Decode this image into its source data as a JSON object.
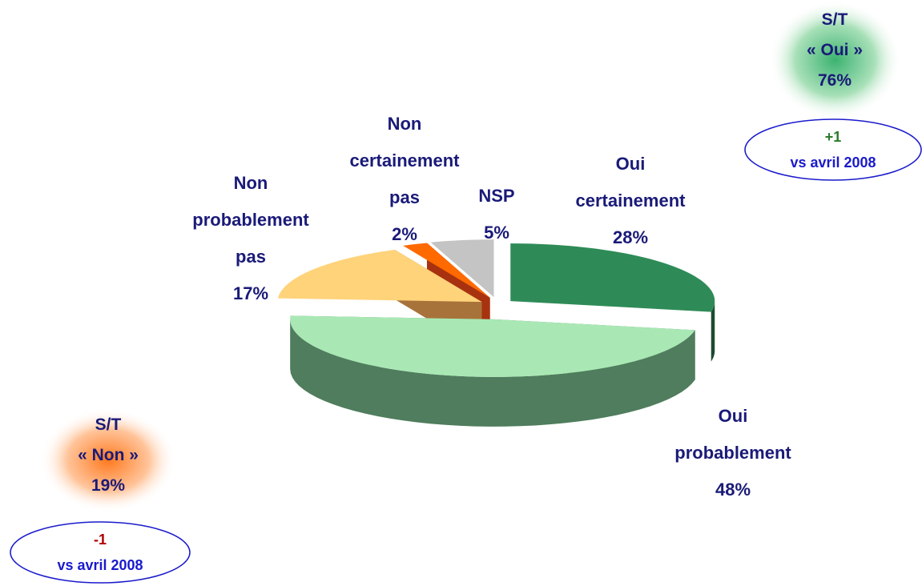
{
  "chart_data": {
    "type": "pie3d",
    "categories": [
      "Oui certainement",
      "Oui probablement",
      "Non probablement pas",
      "Non certainement pas",
      "NSP"
    ],
    "values": [
      28,
      48,
      17,
      2,
      5
    ],
    "value_labels": [
      "28%",
      "48%",
      "17%",
      "2%",
      "5%"
    ],
    "colors": [
      "#2e8b57",
      "#a9e8b4",
      "#ffd37a",
      "#ff6a00",
      "#c4c4c4"
    ],
    "side_colors": [
      "#1c4a30",
      "#4f7d5d",
      "#a8733a",
      "#a83210",
      "#6e6e6e"
    ]
  },
  "summaries": [
    {
      "title": "S/T",
      "subtitle": "« Oui »",
      "value": "76%",
      "change": "+1",
      "period": "vs avril 2008"
    },
    {
      "title": "S/T",
      "subtitle": "«  Non »",
      "value": "19%",
      "change": "-1",
      "period": "vs avril 2008"
    }
  ]
}
